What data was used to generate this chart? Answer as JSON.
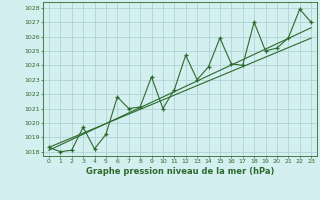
{
  "hours": [
    0,
    1,
    2,
    3,
    4,
    5,
    6,
    7,
    8,
    9,
    10,
    11,
    12,
    13,
    14,
    15,
    16,
    17,
    18,
    19,
    20,
    21,
    22,
    23
  ],
  "pressure": [
    1018.3,
    1018.0,
    1018.1,
    1019.7,
    1018.2,
    1019.2,
    1021.8,
    1021.0,
    1021.1,
    1023.2,
    1021.0,
    1022.3,
    1024.7,
    1023.0,
    1023.9,
    1025.9,
    1024.1,
    1024.0,
    1027.0,
    1025.0,
    1025.2,
    1025.9,
    1027.9,
    1027.0
  ],
  "trend1": [
    1018.1,
    1018.47,
    1018.84,
    1019.21,
    1019.58,
    1019.95,
    1020.32,
    1020.69,
    1021.06,
    1021.43,
    1021.8,
    1022.17,
    1022.54,
    1022.91,
    1023.28,
    1023.65,
    1024.02,
    1024.39,
    1024.76,
    1025.13,
    1025.5,
    1025.87,
    1026.24,
    1026.61
  ],
  "trend2": [
    1018.3,
    1018.63,
    1018.96,
    1019.29,
    1019.62,
    1019.95,
    1020.28,
    1020.61,
    1020.94,
    1021.27,
    1021.6,
    1021.93,
    1022.26,
    1022.59,
    1022.92,
    1023.25,
    1023.58,
    1023.91,
    1024.24,
    1024.57,
    1024.9,
    1025.23,
    1025.56,
    1025.89
  ],
  "line_color": "#2d6a2d",
  "bg_color": "#d4efef",
  "grid_color": "#aed4d4",
  "ylabel_values": [
    1018,
    1019,
    1020,
    1021,
    1022,
    1023,
    1024,
    1025,
    1026,
    1027,
    1028
  ],
  "ylim": [
    1017.7,
    1028.4
  ],
  "xlim": [
    -0.5,
    23.5
  ],
  "xlabel": "Graphe pression niveau de la mer (hPa)"
}
